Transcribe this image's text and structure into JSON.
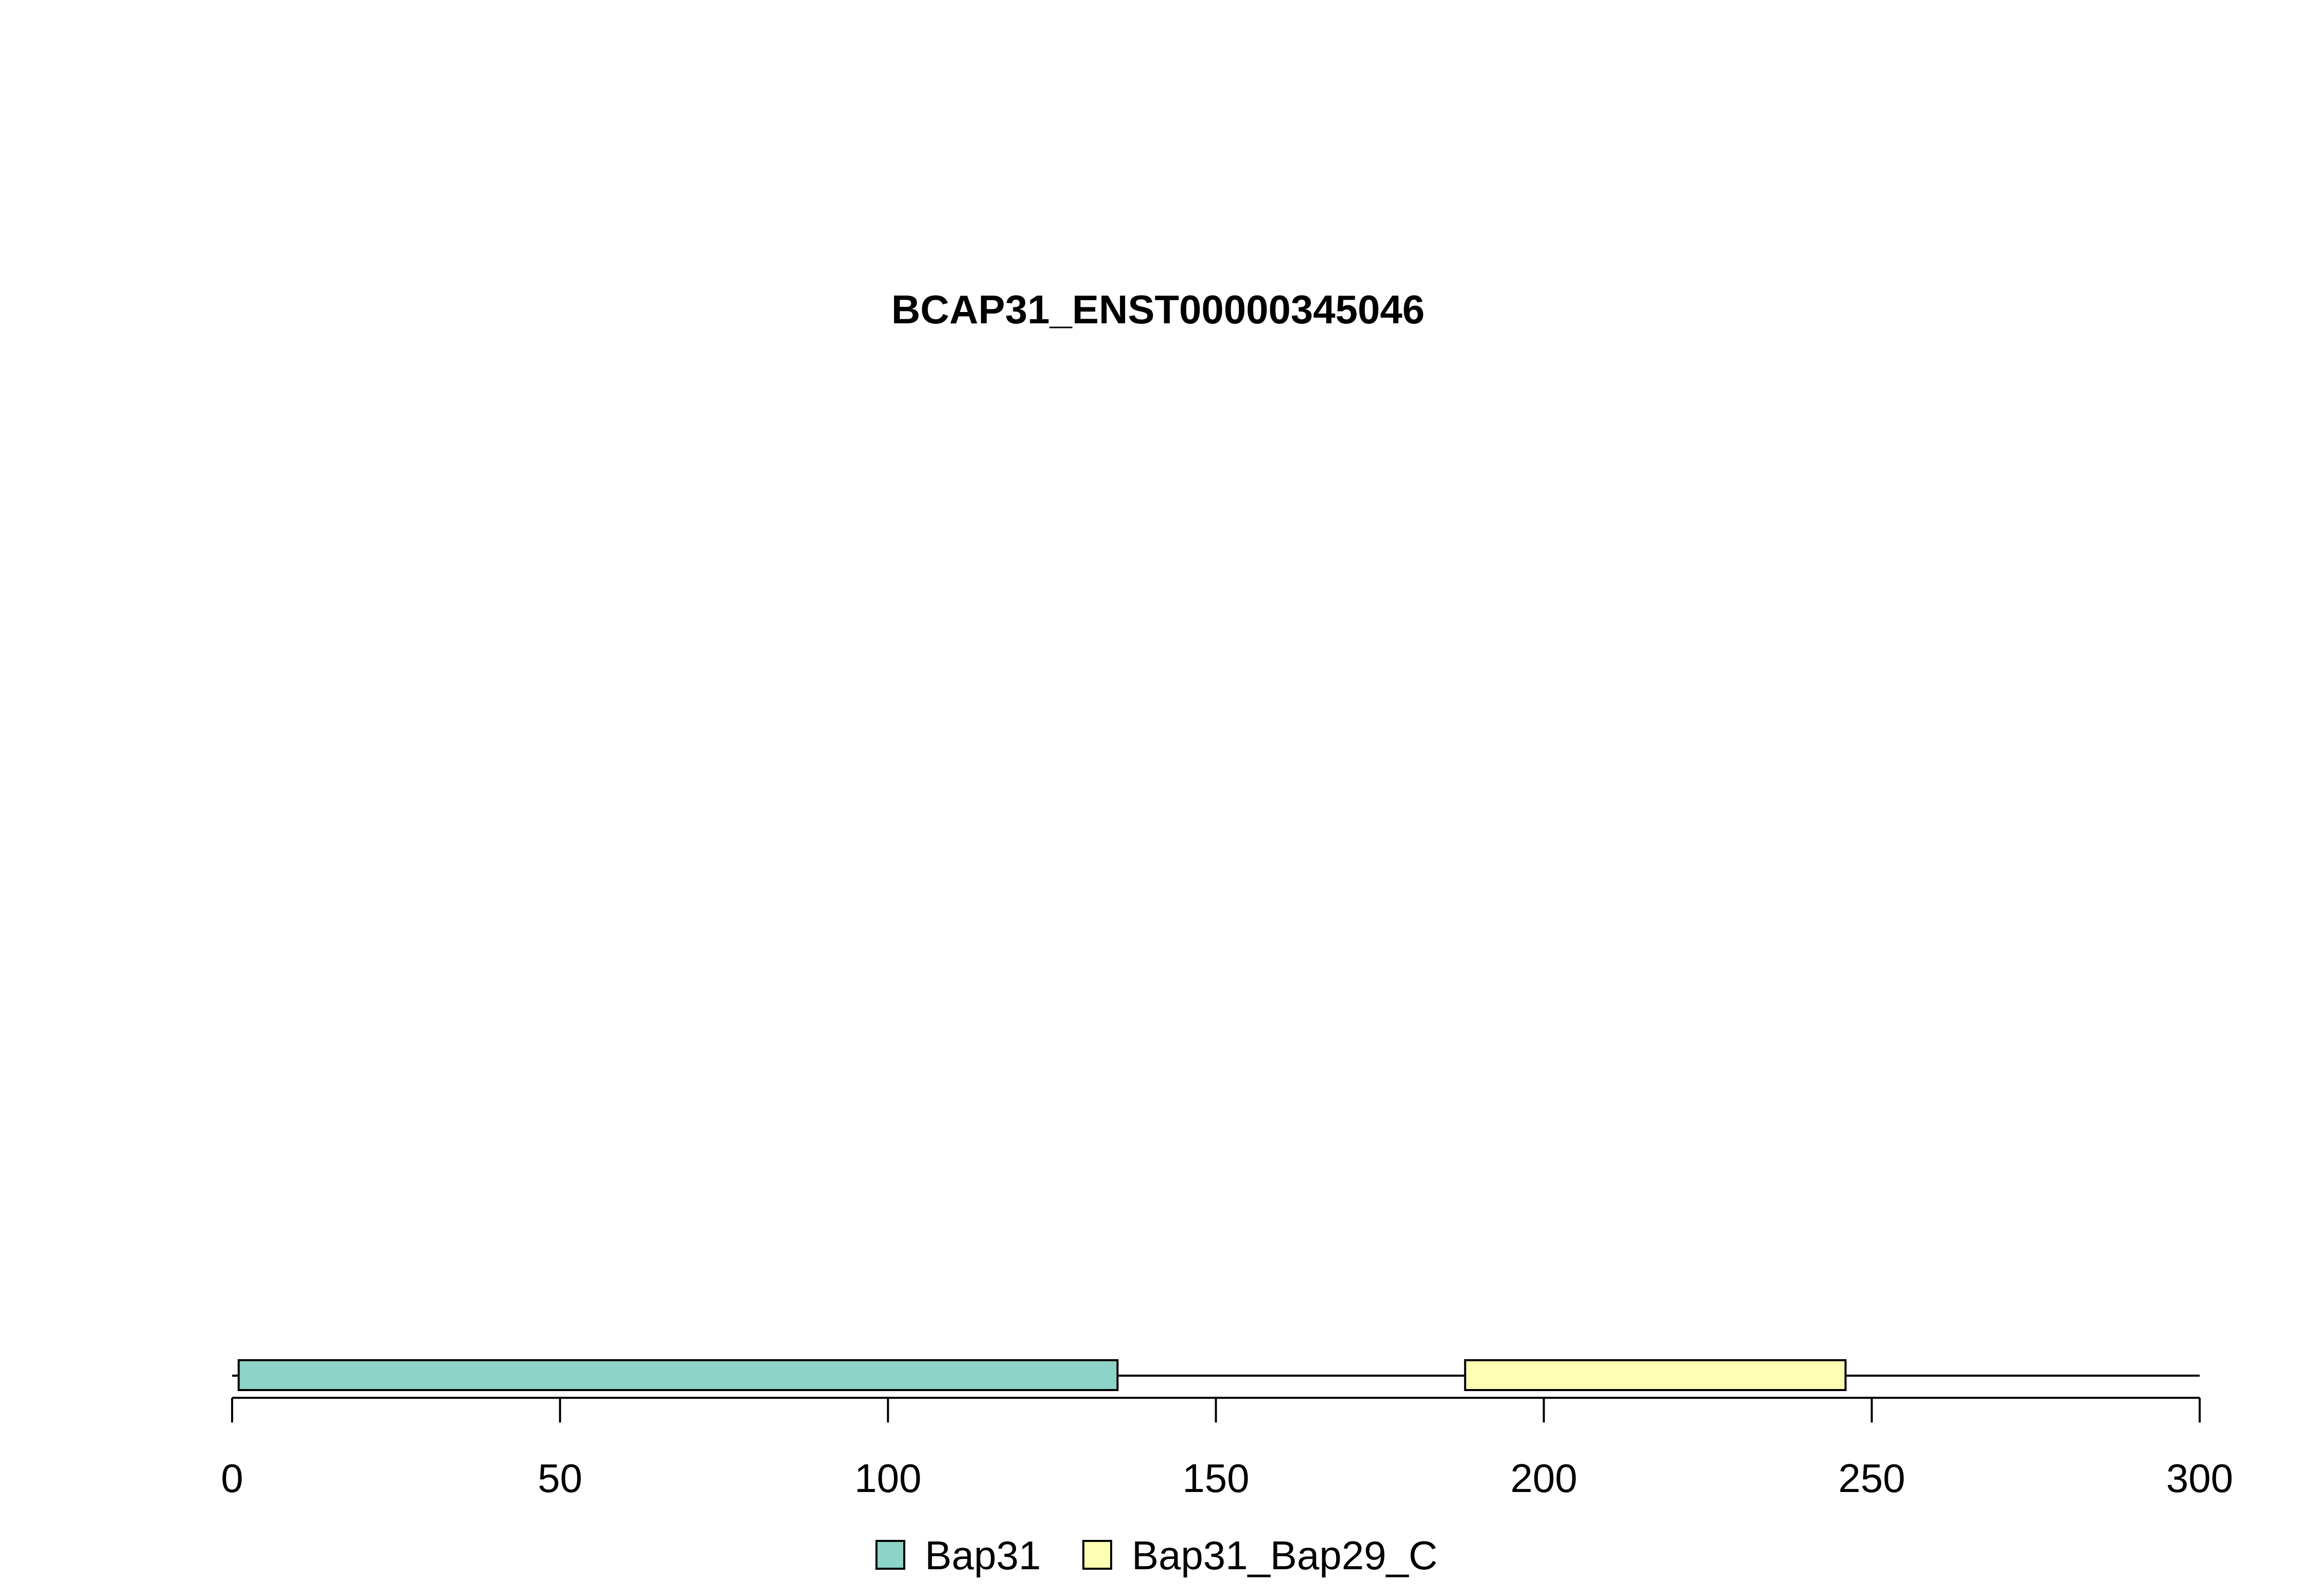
{
  "chart_data": {
    "type": "bar",
    "title": "BCAP31_ENST00000345046",
    "xlabel": "",
    "ylabel": "",
    "xlim": [
      0,
      300
    ],
    "grid": false,
    "protein_length": 300,
    "x_ticks": [
      0,
      50,
      100,
      150,
      200,
      250,
      300
    ],
    "domains": [
      {
        "name": "Bap31",
        "start": 1,
        "end": 135,
        "color": "#8dd3c7"
      },
      {
        "name": "Bap31_Bap29_C",
        "start": 188,
        "end": 246,
        "color": "#ffffb3"
      }
    ],
    "legend": {
      "placement": "bottom",
      "items": [
        {
          "label": "Bap31",
          "color": "#8dd3c7"
        },
        {
          "label": "Bap31_Bap29_C",
          "color": "#ffffb3"
        }
      ]
    }
  }
}
